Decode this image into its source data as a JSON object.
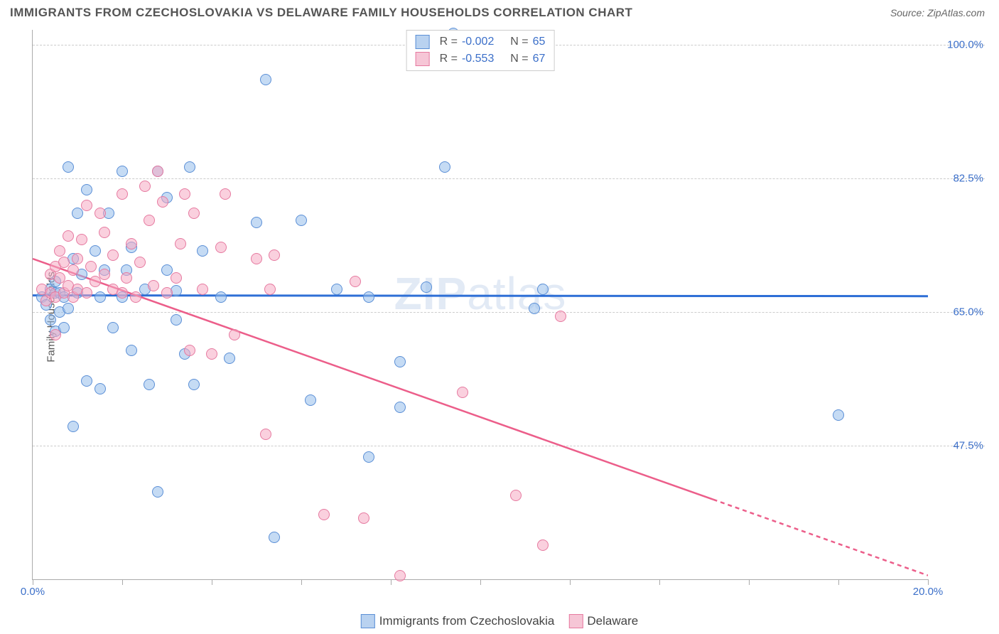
{
  "header": {
    "title": "IMMIGRANTS FROM CZECHOSLOVAKIA VS DELAWARE FAMILY HOUSEHOLDS CORRELATION CHART",
    "source_prefix": "Source: ",
    "source_name": "ZipAtlas.com"
  },
  "watermark": {
    "bold": "ZIP",
    "light": "atlas"
  },
  "chart": {
    "type": "scatter",
    "y_label": "Family Households",
    "x_min": 0.0,
    "x_max": 20.0,
    "y_min": 30.0,
    "y_max": 102.0,
    "background_color": "#ffffff",
    "grid_color": "#cccccc",
    "axis_color": "#aaaaaa",
    "tick_label_color": "#3b6fc9",
    "y_gridlines": [
      47.5,
      65.0,
      82.5,
      100.0
    ],
    "y_tick_labels": [
      "47.5%",
      "65.0%",
      "82.5%",
      "100.0%"
    ],
    "x_ticks": [
      0,
      2,
      4,
      6,
      8,
      10,
      12,
      14,
      16,
      18,
      20
    ],
    "x_tick_labels_shown": {
      "0": "0.0%",
      "20": "20.0%"
    },
    "point_radius": 8,
    "point_border_width": 1.5,
    "series": [
      {
        "name": "Immigrants from Czechoslovakia",
        "key": "czech",
        "fill": "rgba(150,190,235,0.55)",
        "stroke": "#5b8fd6",
        "swatch_fill": "#b9d2f0",
        "swatch_stroke": "#5b8fd6",
        "R": "-0.002",
        "N": "65",
        "trend": {
          "y_at_x0": 67.2,
          "y_at_x20": 67.1,
          "color": "#2e6fd6",
          "width": 3
        },
        "points": [
          [
            0.2,
            67
          ],
          [
            0.3,
            66
          ],
          [
            0.4,
            68
          ],
          [
            0.4,
            64
          ],
          [
            0.5,
            67.5
          ],
          [
            0.5,
            69
          ],
          [
            0.5,
            62.5
          ],
          [
            0.6,
            67.5
          ],
          [
            0.6,
            65
          ],
          [
            0.7,
            63
          ],
          [
            0.7,
            67
          ],
          [
            0.8,
            65.5
          ],
          [
            0.8,
            84
          ],
          [
            0.9,
            50
          ],
          [
            0.9,
            72
          ],
          [
            1.0,
            67.5
          ],
          [
            1.0,
            78
          ],
          [
            1.1,
            70
          ],
          [
            1.2,
            56
          ],
          [
            1.2,
            81
          ],
          [
            1.4,
            73
          ],
          [
            1.5,
            67
          ],
          [
            1.5,
            55
          ],
          [
            1.6,
            70.5
          ],
          [
            1.7,
            78
          ],
          [
            1.8,
            63
          ],
          [
            2.0,
            67
          ],
          [
            2.0,
            83.5
          ],
          [
            2.1,
            70.5
          ],
          [
            2.2,
            60
          ],
          [
            2.2,
            73.5
          ],
          [
            2.5,
            68
          ],
          [
            2.6,
            55.5
          ],
          [
            2.8,
            41.5
          ],
          [
            2.8,
            83.5
          ],
          [
            3.0,
            70.5
          ],
          [
            3.0,
            80
          ],
          [
            3.2,
            64
          ],
          [
            3.2,
            67.8
          ],
          [
            3.4,
            59.5
          ],
          [
            3.5,
            84
          ],
          [
            3.6,
            55.5
          ],
          [
            3.8,
            73
          ],
          [
            4.2,
            67
          ],
          [
            4.4,
            59
          ],
          [
            5.0,
            76.8
          ],
          [
            5.2,
            95.5
          ],
          [
            5.4,
            35.5
          ],
          [
            6.0,
            77
          ],
          [
            6.2,
            53.5
          ],
          [
            6.8,
            68
          ],
          [
            7.5,
            67
          ],
          [
            7.5,
            46
          ],
          [
            8.2,
            52.5
          ],
          [
            8.2,
            58.5
          ],
          [
            8.8,
            68.3
          ],
          [
            9.2,
            84
          ],
          [
            9.4,
            101.5
          ],
          [
            11.2,
            65.5
          ],
          [
            11.4,
            68
          ],
          [
            18.0,
            51.5
          ]
        ]
      },
      {
        "name": "Delaware",
        "key": "delaware",
        "fill": "rgba(245,170,195,0.55)",
        "stroke": "#e67aa0",
        "swatch_fill": "#f6c6d6",
        "swatch_stroke": "#e67aa0",
        "R": "-0.553",
        "N": "67",
        "trend": {
          "y_at_x0": 72.0,
          "y_at_x20": 30.5,
          "color": "#ec5e8a",
          "width": 2.5,
          "dash_after_x": 15.2
        },
        "points": [
          [
            0.2,
            68
          ],
          [
            0.3,
            66.5
          ],
          [
            0.4,
            67.5
          ],
          [
            0.4,
            70
          ],
          [
            0.5,
            71
          ],
          [
            0.5,
            67
          ],
          [
            0.5,
            62
          ],
          [
            0.6,
            69.5
          ],
          [
            0.6,
            73
          ],
          [
            0.7,
            67.5
          ],
          [
            0.7,
            71.5
          ],
          [
            0.8,
            68.5
          ],
          [
            0.8,
            75
          ],
          [
            0.9,
            67
          ],
          [
            0.9,
            70.5
          ],
          [
            1.0,
            68
          ],
          [
            1.0,
            72
          ],
          [
            1.1,
            74.5
          ],
          [
            1.2,
            67.5
          ],
          [
            1.2,
            79
          ],
          [
            1.3,
            71
          ],
          [
            1.4,
            69
          ],
          [
            1.5,
            78
          ],
          [
            1.6,
            70
          ],
          [
            1.6,
            75.5
          ],
          [
            1.8,
            72.5
          ],
          [
            1.8,
            68
          ],
          [
            2.0,
            67.5
          ],
          [
            2.0,
            80.5
          ],
          [
            2.1,
            69.5
          ],
          [
            2.2,
            74
          ],
          [
            2.3,
            67
          ],
          [
            2.4,
            71.5
          ],
          [
            2.5,
            81.5
          ],
          [
            2.6,
            77
          ],
          [
            2.7,
            68.5
          ],
          [
            2.8,
            83.5
          ],
          [
            2.9,
            79.5
          ],
          [
            3.0,
            67.5
          ],
          [
            3.2,
            69.5
          ],
          [
            3.3,
            74
          ],
          [
            3.4,
            80.5
          ],
          [
            3.5,
            60
          ],
          [
            3.6,
            78
          ],
          [
            3.8,
            68
          ],
          [
            4.0,
            59.5
          ],
          [
            4.2,
            73.5
          ],
          [
            4.3,
            80.5
          ],
          [
            4.5,
            62
          ],
          [
            5.0,
            72
          ],
          [
            5.2,
            49
          ],
          [
            5.3,
            68
          ],
          [
            5.4,
            72.5
          ],
          [
            6.5,
            38.5
          ],
          [
            7.2,
            69
          ],
          [
            7.4,
            38
          ],
          [
            8.2,
            30.5
          ],
          [
            9.6,
            54.5
          ],
          [
            10.8,
            41
          ],
          [
            11.4,
            34.5
          ],
          [
            11.8,
            64.5
          ]
        ]
      }
    ]
  },
  "legend_bottom": {
    "items": [
      {
        "label": "Immigrants from Czechoslovakia",
        "swatch_fill": "#b9d2f0",
        "swatch_stroke": "#5b8fd6"
      },
      {
        "label": "Delaware",
        "swatch_fill": "#f6c6d6",
        "swatch_stroke": "#e67aa0"
      }
    ]
  }
}
